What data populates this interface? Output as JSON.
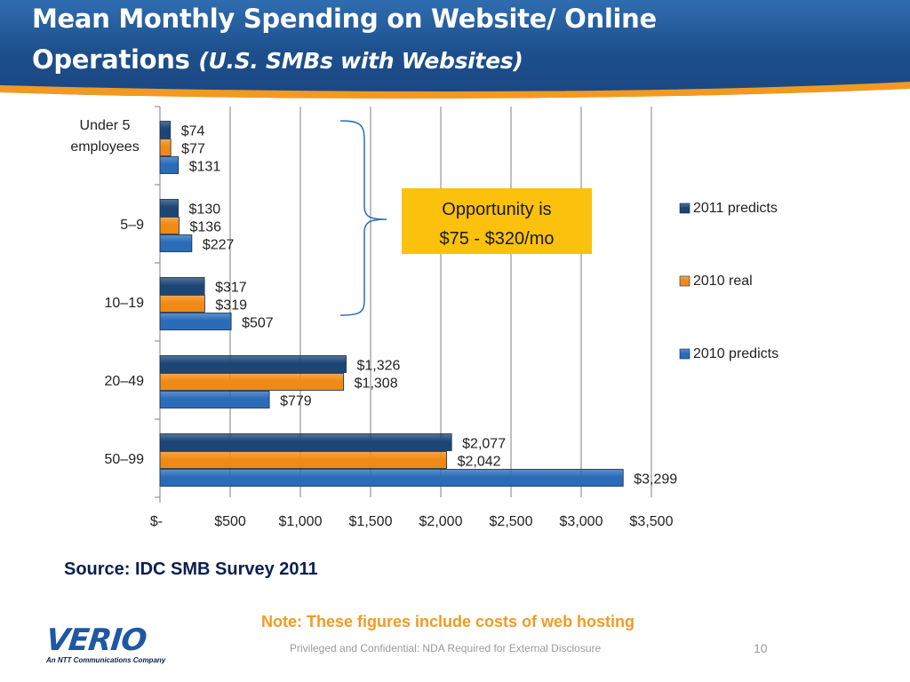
{
  "header": {
    "title_line1": "Mean Monthly Spending on Website/ Online",
    "title_line2": "Operations ",
    "title_sub": "(U.S. SMBs with Websites)"
  },
  "chart_data": {
    "type": "bar",
    "orientation": "horizontal",
    "categories": [
      "Under 5 employees",
      "5–9",
      "10–19",
      "20–49",
      "50–99"
    ],
    "series": [
      {
        "name": "2011 predicts",
        "values": [
          74,
          130,
          317,
          1326,
          2077
        ],
        "labels": [
          "$74",
          "$130",
          "$317",
          "$1,326",
          "$2,077"
        ],
        "color": "#1c4676"
      },
      {
        "name": "2010 real",
        "values": [
          77,
          136,
          319,
          1308,
          2042
        ],
        "labels": [
          "$77",
          "$136",
          "$319",
          "$1,308",
          "$2,042"
        ],
        "color": "#f08a14"
      },
      {
        "name": "2010 predicts",
        "values": [
          131,
          227,
          507,
          779,
          3299
        ],
        "labels": [
          "$131",
          "$227",
          "$507",
          "$779",
          "$3,299"
        ],
        "color": "#2a6cb8"
      }
    ],
    "xlim": [
      0,
      3500
    ],
    "xticks": [
      0,
      500,
      1000,
      1500,
      2000,
      2500,
      3000,
      3500
    ],
    "xtick_labels": [
      "$-",
      "$500",
      "$1,000",
      "$1,500",
      "$2,000",
      "$2,500",
      "$3,000",
      "$3,500"
    ],
    "grid": true,
    "legend": "right",
    "annotation": {
      "line1": "Opportunity is",
      "line2": "$75 - $320/mo",
      "background": "#fbc10c"
    }
  },
  "source": "Source: IDC  SMB Survey 2011",
  "note": "Note: These figures include costs of web hosting",
  "footer": {
    "confidential": "Privileged and Confidential: NDA Required for External Disclosure",
    "page": "10"
  },
  "logo": {
    "word": "VERIO",
    "tagline": "An NTT Communications Company"
  }
}
